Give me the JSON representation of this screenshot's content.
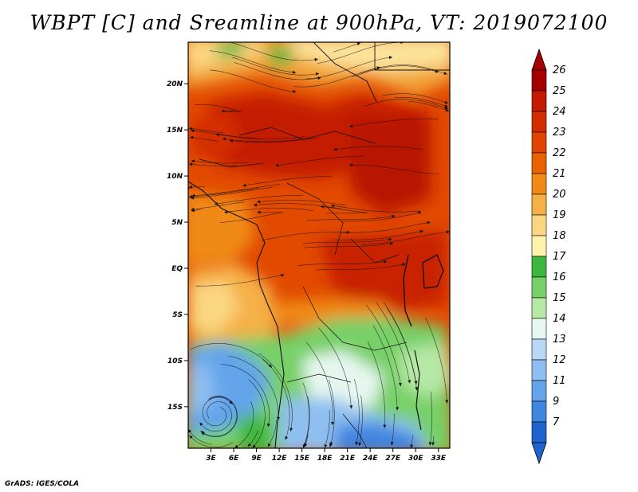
{
  "title": "WBPT [C] and Sreamline at 900hPa, VT: 2019072100",
  "footer": "GrADS: IGES/COLA",
  "map": {
    "lat_labels": [
      "20N",
      "15N",
      "10N",
      "5N",
      "EQ",
      "5S",
      "10S",
      "15S"
    ],
    "lat_values": [
      20,
      15,
      10,
      5,
      0,
      -5,
      -10,
      -15
    ],
    "lon_labels": [
      "3E",
      "6E",
      "9E",
      "12E",
      "15E",
      "18E",
      "21E",
      "24E",
      "27E",
      "30E",
      "33E"
    ],
    "lon_values": [
      3,
      6,
      9,
      12,
      15,
      18,
      21,
      24,
      27,
      30,
      33
    ],
    "lon_range": [
      0,
      34.5
    ],
    "lat_range": [
      -19.5,
      24.5
    ]
  },
  "colorbar": {
    "labels": [
      "26",
      "25",
      "24",
      "23",
      "22",
      "21",
      "20",
      "19",
      "18",
      "17",
      "16",
      "15",
      "14",
      "13",
      "12",
      "11",
      "9",
      "7"
    ],
    "colors": [
      "#a50000",
      "#c41a00",
      "#d42e00",
      "#e04400",
      "#ea6100",
      "#f08a14",
      "#f5b046",
      "#fbd680",
      "#fdf3ac",
      "#3fb73f",
      "#78d068",
      "#b6e8a6",
      "#e6f7f0",
      "#b8d8f5",
      "#8fbff0",
      "#63a4ea",
      "#3f86e0",
      "#1f62d0"
    ]
  }
}
